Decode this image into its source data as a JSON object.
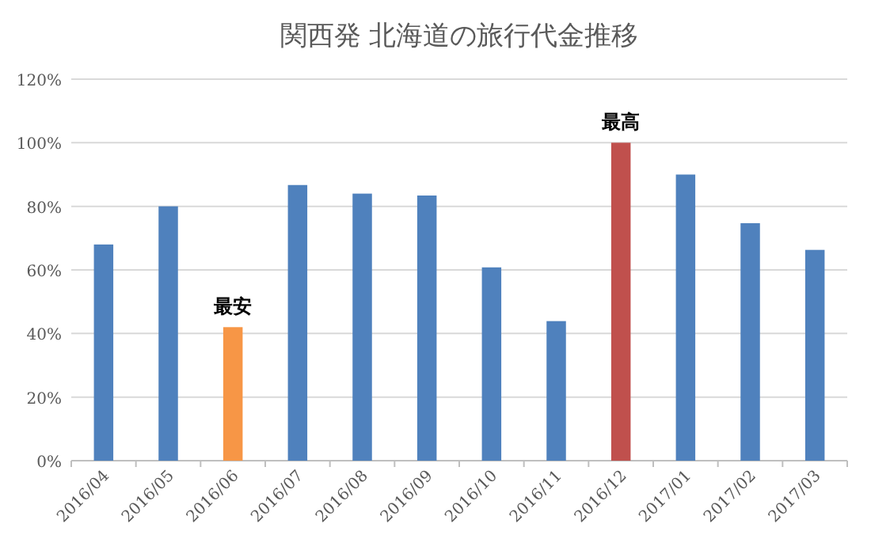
{
  "chart_data": {
    "type": "bar",
    "title": "関西発 北海道の旅行代金推移",
    "categories": [
      "2016/04",
      "2016/05",
      "2016/06",
      "2016/07",
      "2016/08",
      "2016/09",
      "2016/10",
      "2016/11",
      "2016/12",
      "2017/01",
      "2017/02",
      "2017/03"
    ],
    "values": [
      68,
      80,
      42,
      86.7,
      84,
      83.4,
      60.8,
      43.9,
      100,
      90,
      74.7,
      66.3
    ],
    "colors": [
      "#4f81bd",
      "#4f81bd",
      "#f79646",
      "#4f81bd",
      "#4f81bd",
      "#4f81bd",
      "#4f81bd",
      "#4f81bd",
      "#c0504d",
      "#4f81bd",
      "#4f81bd",
      "#4f81bd"
    ],
    "ylim": [
      0,
      120
    ],
    "yticks": [
      {
        "value": 0,
        "label": "0%"
      },
      {
        "value": 20,
        "label": "20%"
      },
      {
        "value": 40,
        "label": "40%"
      },
      {
        "value": 60,
        "label": "60%"
      },
      {
        "value": 80,
        "label": "80%"
      },
      {
        "value": 100,
        "label": "100%"
      },
      {
        "value": 120,
        "label": "120%"
      }
    ],
    "grid": "y",
    "annotations": [
      {
        "text": "最安",
        "x": "2016/06",
        "y": 42
      },
      {
        "text": "最高",
        "x": "2016/12",
        "y": 100
      }
    ]
  }
}
